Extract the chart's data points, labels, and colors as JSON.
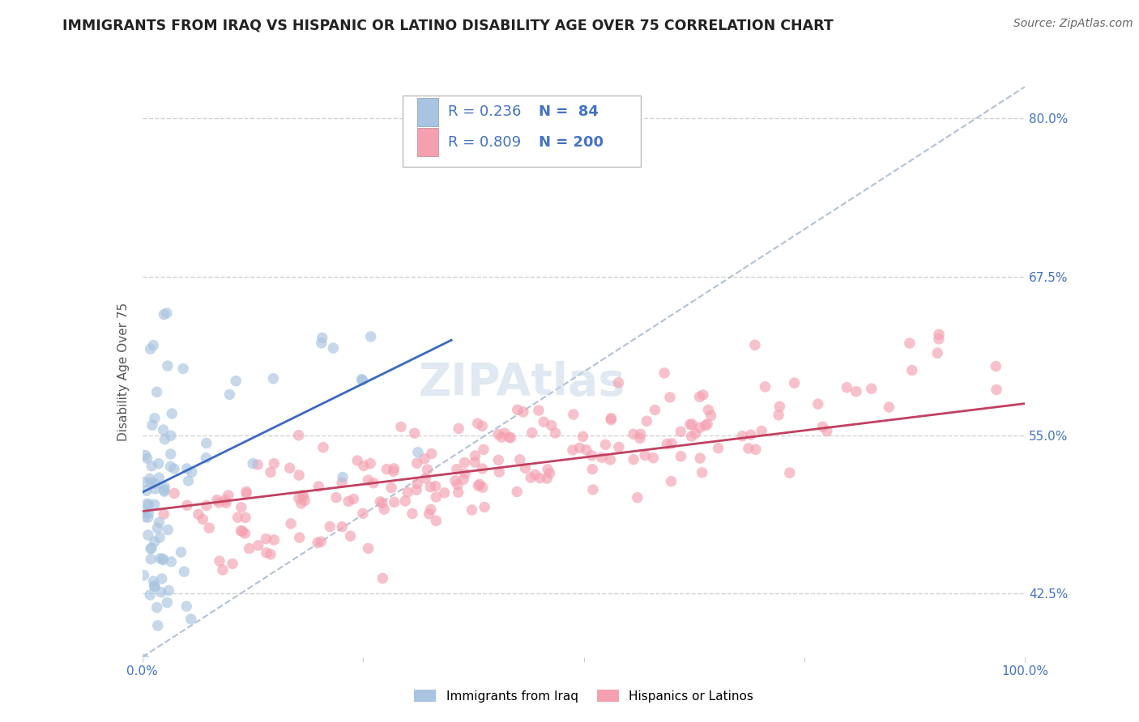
{
  "title": "IMMIGRANTS FROM IRAQ VS HISPANIC OR LATINO DISABILITY AGE OVER 75 CORRELATION CHART",
  "source": "Source: ZipAtlas.com",
  "ylabel": "Disability Age Over 75",
  "xlim": [
    0.0,
    1.0
  ],
  "ylim": [
    0.375,
    0.825
  ],
  "yticks": [
    0.425,
    0.55,
    0.675,
    0.8
  ],
  "ytick_labels": [
    "42.5%",
    "55.0%",
    "67.5%",
    "80.0%"
  ],
  "xticks": [
    0.0,
    0.25,
    0.5,
    0.75,
    1.0
  ],
  "xtick_labels": [
    "0.0%",
    "",
    "",
    "",
    "100.0%"
  ],
  "grid_color": "#cccccc",
  "background_color": "#ffffff",
  "series": [
    {
      "name": "Immigrants from Iraq",
      "R": 0.236,
      "N": 84,
      "color": "#a8c4e0",
      "line_color": "#3a6abf",
      "trend_x_start": 0.0,
      "trend_x_end": 0.35,
      "trend_y_start": 0.505,
      "trend_y_end": 0.625
    },
    {
      "name": "Hispanics or Latinos",
      "R": 0.809,
      "N": 200,
      "color": "#f4a0b0",
      "line_color": "#c04060",
      "trend_x_start": 0.0,
      "trend_x_end": 1.0,
      "trend_y_start": 0.49,
      "trend_y_end": 0.575
    }
  ],
  "ref_line_color": "#aabbd0",
  "ref_line_style": "--",
  "title_fontsize": 12.5,
  "axis_label_fontsize": 11,
  "tick_fontsize": 11,
  "source_fontsize": 10,
  "ylabel_color": "#555555",
  "tick_color": "#4472c4",
  "title_color": "#222222",
  "legend_fontsize": 13,
  "watermark_text": "ZIPAtlas",
  "watermark_color": "#c8d8e8",
  "watermark_alpha": 0.55,
  "watermark_fontsize": 40
}
